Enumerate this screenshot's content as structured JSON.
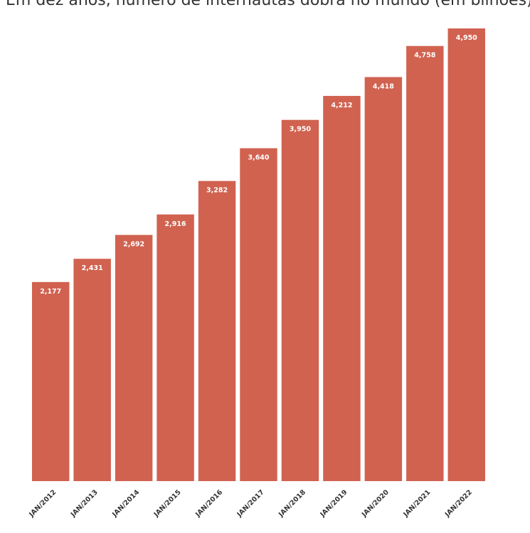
{
  "chart_data": {
    "type": "bar",
    "title": "Em dez anos, número de internautas dobra no mundo (em bilhões)",
    "categories": [
      "JAN/2012",
      "JAN/2013",
      "JAN/2014",
      "JAN/2015",
      "JAN/2016",
      "JAN/2017",
      "JAN/2018",
      "JAN/2019",
      "JAN/2020",
      "JAN/2021",
      "JAN/2022"
    ],
    "values": [
      2.177,
      2.431,
      2.692,
      2.916,
      3.282,
      3.64,
      3.95,
      4.212,
      4.418,
      4.758,
      4.95
    ],
    "data_labels": [
      "2,177",
      "2,431",
      "2,692",
      "2,916",
      "3,282",
      "3,640",
      "3,950",
      "4,212",
      "4,418",
      "4,758",
      "4,950"
    ],
    "xlabel": "",
    "ylabel": "",
    "ylim": [
      0,
      4.95
    ],
    "grid": false,
    "legend": "none",
    "colors": {
      "bar": "#d16250",
      "value_label": "#ffffff",
      "axis_text": "#333333"
    }
  }
}
